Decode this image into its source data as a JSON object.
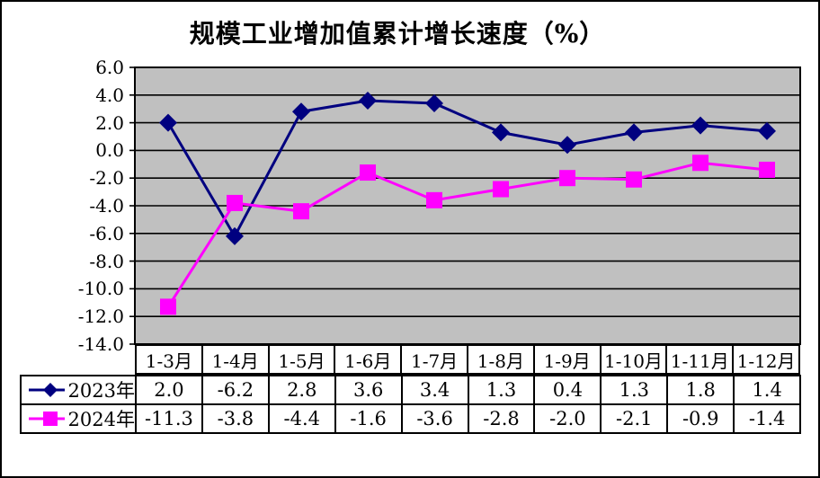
{
  "frame": {
    "background": "#FFFFFF",
    "border_color": "#000000"
  },
  "chart_data": {
    "type": "line",
    "title": "规模工业增加值累计增长速度（%）",
    "categories": [
      "1-3月",
      "1-4月",
      "1-5月",
      "1-6月",
      "1-7月",
      "1-8月",
      "1-9月",
      "1-10月",
      "1-11月",
      "1-12月"
    ],
    "series": [
      {
        "name": "2023年",
        "color": "#000080",
        "marker": "diamond",
        "values": [
          2.0,
          -6.2,
          2.8,
          3.6,
          3.4,
          1.3,
          0.4,
          1.3,
          1.8,
          1.4
        ]
      },
      {
        "name": "2024年",
        "color": "#FF00FF",
        "marker": "square",
        "values": [
          -11.3,
          -3.8,
          -4.4,
          -1.6,
          -3.6,
          -2.8,
          -2.0,
          -2.1,
          -0.9,
          -1.4
        ]
      }
    ],
    "ylim": [
      -14.0,
      6.0
    ],
    "ytick_step": 2,
    "ytick_labels": [
      "6.0",
      "4.0",
      "2.0",
      "0.0",
      "-2.0",
      "-4.0",
      "-6.0",
      "-8.0",
      "-10.0",
      "-12.0",
      "-14.0"
    ],
    "grid": true,
    "plot_bg": "#C0C0C0",
    "gridline_color": "#000000",
    "axis_color": "#000000",
    "legend_position": "data-table-left",
    "value_format": "one-decimal"
  }
}
